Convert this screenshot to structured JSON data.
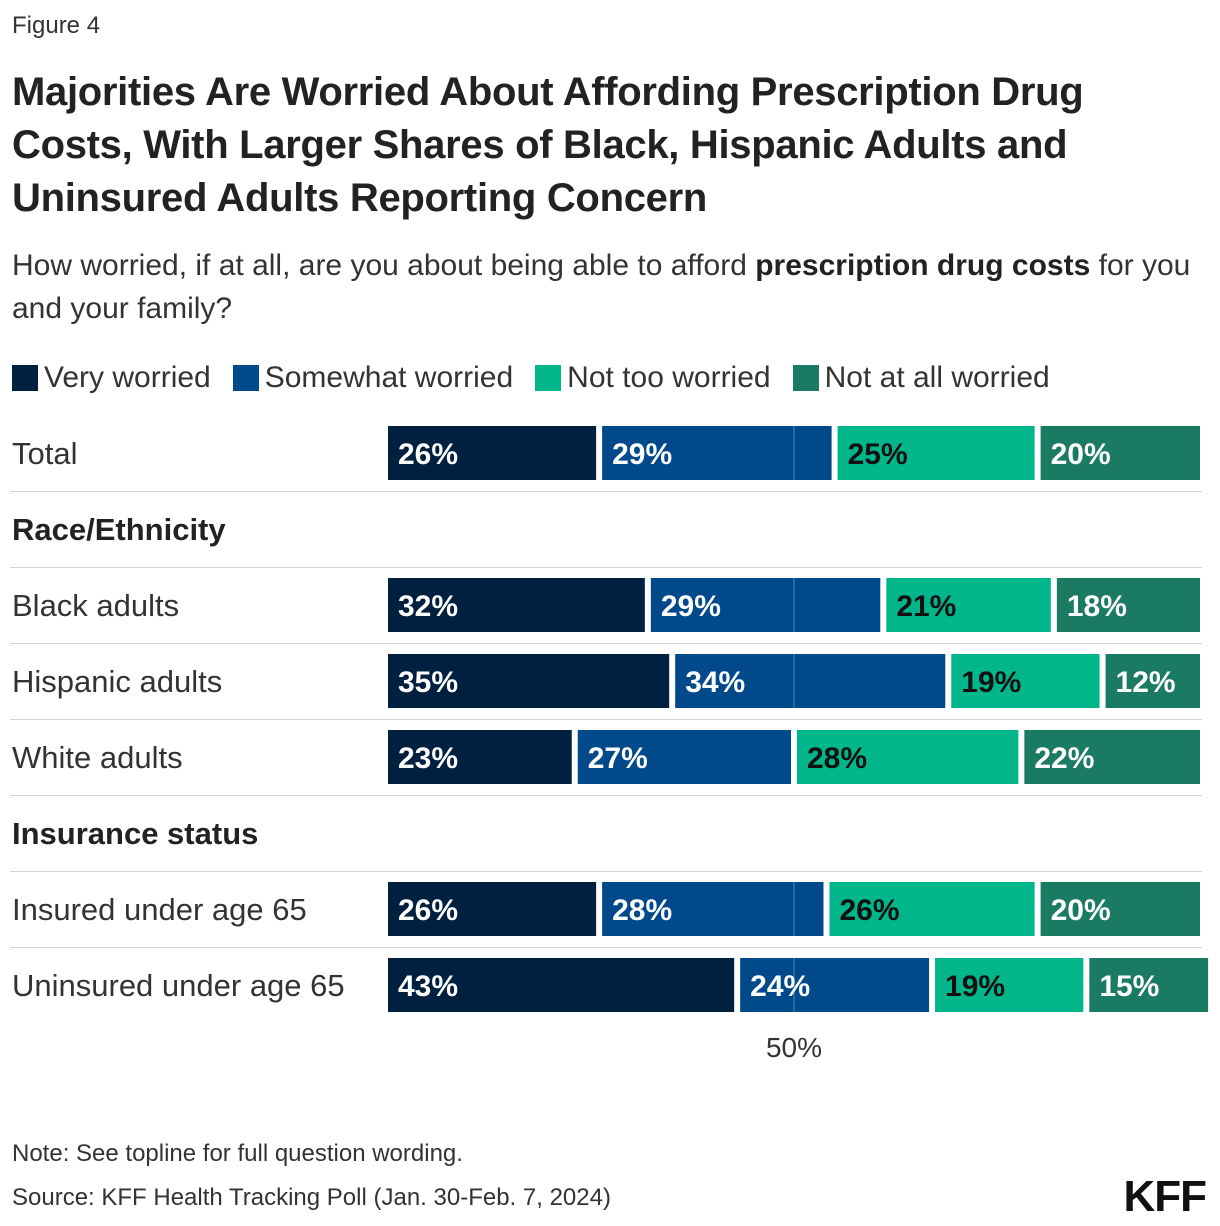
{
  "figure_label": "Figure 4",
  "chart_data": {
    "type": "bar",
    "orientation": "horizontal",
    "stacked": true,
    "title": "Majorities Are Worried About Affording Prescription Drug Costs, With Larger Shares of Black, Hispanic Adults and Uninsured Adults Reporting Concern",
    "subtitle_plain": "How worried, if at all, are you about being able to afford ",
    "subtitle_bold": "prescription drug costs",
    "subtitle_end": " for you and your family?",
    "categories": [
      "Total",
      "Black adults",
      "Hispanic adults",
      "White adults",
      "Insured under age 65",
      "Uninsured under age 65"
    ],
    "groups": [
      {
        "label": "Race/Ethnicity",
        "before_index": 1
      },
      {
        "label": "Insurance status",
        "before_index": 4
      }
    ],
    "series": [
      {
        "name": "Very worried",
        "color": "#00203f",
        "text_color": "#ffffff",
        "values": [
          26,
          32,
          35,
          23,
          26,
          43
        ]
      },
      {
        "name": "Somewhat worried",
        "color": "#00498a",
        "text_color": "#ffffff",
        "values": [
          29,
          29,
          34,
          27,
          28,
          24
        ]
      },
      {
        "name": "Not too worried",
        "color": "#00b68a",
        "text_color": "#111111",
        "values": [
          25,
          21,
          19,
          28,
          26,
          19
        ]
      },
      {
        "name": "Not at all worried",
        "color": "#1b7a64",
        "text_color": "#ffffff",
        "values": [
          20,
          18,
          12,
          22,
          20,
          15
        ]
      }
    ],
    "xlim": [
      0,
      100
    ],
    "x_ticks": [
      {
        "value": 50,
        "label": "50%"
      }
    ],
    "value_suffix": "%",
    "legend_position": "top-left"
  },
  "footer": {
    "note": "Note: See topline for full question wording.",
    "source": "Source: KFF Health Tracking Poll (Jan. 30-Feb. 7, 2024)",
    "logo": "KFF"
  }
}
